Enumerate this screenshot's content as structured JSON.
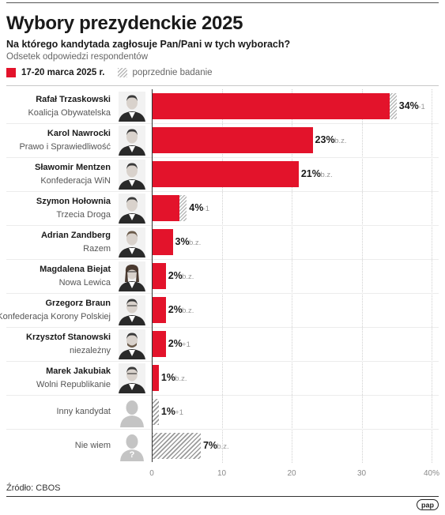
{
  "title": "Wybory prezydenckie 2025",
  "subtitle": "Na którego kandytada zagłosuje Pan/Pani w tych wyborach?",
  "note": "Odsetek odpowiedzi respondentów",
  "legend": {
    "current": "17-20 marca 2025 r.",
    "previous": "poprzednie badanie",
    "current_color": "#e3132b",
    "previous_color": "#b8b8b8"
  },
  "source": "Źródło: CBOS",
  "logo_text": "pap",
  "chart_data": {
    "type": "bar",
    "orientation": "horizontal",
    "xlim": [
      0,
      40
    ],
    "ticks": [
      "0",
      "10",
      "20",
      "30",
      "40%"
    ],
    "categories": [
      "Rafał Trzaskowski",
      "Karol Nawrocki",
      "Sławomir Mentzen",
      "Szymon Hołownia",
      "Adrian Zandberg",
      "Magdalena Biejat",
      "Grzegorz Braun",
      "Krzysztof Stanowski",
      "Marek Jakubiak",
      "Inny kandydat",
      "Nie wiem"
    ],
    "parties": [
      "Koalicja Obywatelska",
      "Prawo i Sprawiedliwość",
      "Konfederacja WiN",
      "Trzecia Droga",
      "Razem",
      "Nowa Lewica",
      "Konfederacja Korony Polskiej",
      "niezależny",
      "Wolni Republikanie",
      "",
      ""
    ],
    "values": [
      34,
      23,
      21,
      4,
      3,
      2,
      2,
      2,
      1,
      1,
      7
    ],
    "value_labels": [
      "34%",
      "23%",
      "21%",
      "4%",
      "3%",
      "2%",
      "2%",
      "2%",
      "1%",
      "1%",
      "7%"
    ],
    "previous": [
      35,
      23,
      21,
      5,
      3,
      2,
      2,
      1,
      1,
      0,
      7
    ],
    "changes": [
      "-1",
      "b.z.",
      "b.z.",
      "-1",
      "b.z.",
      "b.z.",
      "b.z.",
      "+1",
      "b.z.",
      "+1",
      "b.z."
    ],
    "bar_styles": [
      "red",
      "red",
      "red",
      "red",
      "red",
      "red",
      "red",
      "red",
      "red",
      "gray",
      "gray"
    ],
    "photo_icons": [
      "candidate-photo",
      "candidate-photo",
      "candidate-photo",
      "candidate-photo",
      "candidate-photo",
      "candidate-photo",
      "candidate-photo",
      "candidate-photo",
      "candidate-photo",
      "silhouette",
      "silhouette-question"
    ],
    "silhouette_glyph": "?"
  }
}
